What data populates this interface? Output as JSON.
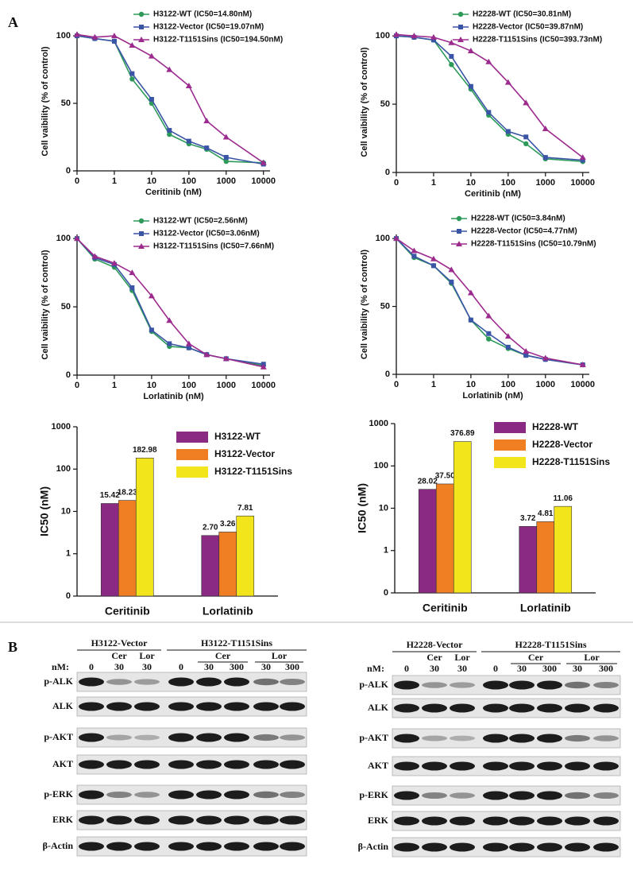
{
  "panel_labels": [
    "A",
    "B"
  ],
  "chart_data": [
    {
      "type": "line",
      "xlabel": "Ceritinib (nM)",
      "ylabel": "Cell vaibility (% of control)",
      "xlog": true,
      "x": [
        0,
        0.3,
        1,
        3,
        10,
        30,
        100,
        300,
        1000,
        10000
      ],
      "xlim": [
        0,
        15000
      ],
      "xticks": [
        0,
        1,
        10,
        100,
        1000,
        10000
      ],
      "ylim": [
        0,
        103
      ],
      "yticks": [
        0,
        50,
        100
      ],
      "series": [
        {
          "name": "H3122-WT (IC50=14.80nM)",
          "color": "#2e9a5a",
          "marker": "circle",
          "values": [
            100,
            98,
            96,
            68,
            50,
            27,
            20,
            16,
            7,
            6
          ]
        },
        {
          "name": "H3122-Vector (IC50=19.07nM)",
          "color": "#3b55a6",
          "marker": "square",
          "values": [
            100,
            98,
            96,
            72,
            53,
            30,
            22,
            17,
            10,
            5
          ]
        },
        {
          "name": "H3122-T1151Sins (IC50=194.50nM)",
          "color": "#9c2b8e",
          "marker": "triangle",
          "values": [
            101,
            99,
            100,
            93,
            85,
            75,
            63,
            37,
            25,
            6
          ]
        }
      ]
    },
    {
      "type": "line",
      "xlabel": "Ceritinib (nM)",
      "ylabel": "Cell vaibility (% of control)",
      "xlog": true,
      "x": [
        0,
        0.3,
        1,
        3,
        10,
        30,
        100,
        300,
        1000,
        10000
      ],
      "xlim": [
        0,
        15000
      ],
      "xticks": [
        0,
        1,
        10,
        100,
        1000,
        10000
      ],
      "ylim": [
        0,
        103
      ],
      "yticks": [
        0,
        50,
        100
      ],
      "series": [
        {
          "name": "H2228-WT (IC50=30.81nM)",
          "color": "#2e9a5a",
          "marker": "circle",
          "values": [
            100,
            99,
            97,
            79,
            61,
            42,
            28,
            21,
            10,
            8
          ]
        },
        {
          "name": "H2228-Vector (IC50=39.87nM)",
          "color": "#3b55a6",
          "marker": "square",
          "values": [
            100,
            99,
            97,
            85,
            63,
            44,
            30,
            26,
            11,
            9
          ]
        },
        {
          "name": "H2228-T1151Sins (IC50=393.73nM)",
          "color": "#9c2b8e",
          "marker": "triangle",
          "values": [
            101,
            100,
            99,
            95,
            89,
            81,
            66,
            51,
            32,
            11
          ]
        }
      ]
    },
    {
      "type": "line",
      "xlabel": "Lorlatinib (nM)",
      "ylabel": "Cell vaibility (% of control)",
      "xlog": true,
      "x": [
        0,
        0.3,
        1,
        3,
        10,
        30,
        100,
        300,
        1000,
        10000
      ],
      "xlim": [
        0,
        15000
      ],
      "xticks": [
        0,
        1,
        10,
        100,
        1000,
        10000
      ],
      "ylim": [
        0,
        103
      ],
      "yticks": [
        0,
        50,
        100
      ],
      "series": [
        {
          "name": "H3122-WT (IC50=2.56nM)",
          "color": "#2e9a5a",
          "marker": "circle",
          "values": [
            100,
            85,
            79,
            62,
            32,
            21,
            20,
            15,
            12,
            7
          ]
        },
        {
          "name": "H3122-Vector (IC50=3.06nM)",
          "color": "#3b55a6",
          "marker": "square",
          "values": [
            100,
            86,
            81,
            64,
            33,
            23,
            20,
            15,
            12,
            8
          ]
        },
        {
          "name": "H3122-T1151Sins (IC50=7.66nM)",
          "color": "#9c2b8e",
          "marker": "triangle",
          "values": [
            100,
            87,
            82,
            75,
            58,
            40,
            23,
            15,
            12,
            6
          ]
        }
      ]
    },
    {
      "type": "line",
      "xlabel": "Lorlatinib (nM)",
      "ylabel": "Cell vaibility (% of control)",
      "xlog": true,
      "x": [
        0,
        0.3,
        1,
        3,
        10,
        30,
        100,
        300,
        1000,
        10000
      ],
      "xlim": [
        0,
        15000
      ],
      "xticks": [
        0,
        1,
        10,
        100,
        1000,
        10000
      ],
      "ylim": [
        0,
        103
      ],
      "yticks": [
        0,
        50,
        100
      ],
      "series": [
        {
          "name": "H2228-WT (IC50=3.84nM)",
          "color": "#2e9a5a",
          "marker": "circle",
          "values": [
            100,
            86,
            80,
            67,
            40,
            26,
            19,
            14,
            11,
            7
          ]
        },
        {
          "name": "H2228-Vector (IC50=4.77nM)",
          "color": "#3b55a6",
          "marker": "square",
          "values": [
            100,
            87,
            80,
            68,
            40,
            30,
            20,
            14,
            11,
            7
          ]
        },
        {
          "name": "H2228-T1151Sins (IC50=10.79nM)",
          "color": "#9c2b8e",
          "marker": "triangle",
          "values": [
            100,
            91,
            85,
            77,
            60,
            43,
            28,
            17,
            12,
            7
          ]
        }
      ]
    },
    {
      "type": "bar",
      "ylabel": "IC50 (nM)",
      "ylog": true,
      "categories": [
        "Ceritinib",
        "Lorlatinib"
      ],
      "ylim": [
        0,
        1000
      ],
      "yticks": [
        0,
        1,
        10,
        100,
        1000
      ],
      "series": [
        {
          "name": "H3122-WT",
          "color": "#8b2a82",
          "values": [
            15.42,
            2.7
          ],
          "value_labels": [
            "15.42",
            "2.70"
          ]
        },
        {
          "name": "H3122-Vector",
          "color": "#f07e22",
          "values": [
            18.23,
            3.26
          ],
          "value_labels": [
            "18.23",
            "3.26"
          ]
        },
        {
          "name": "H3122-T1151Sins",
          "color": "#f2e51b",
          "values": [
            182.98,
            7.81
          ],
          "value_labels": [
            "182.98",
            "7.81"
          ]
        }
      ]
    },
    {
      "type": "bar",
      "ylabel": "IC50 (nM)",
      "ylog": true,
      "categories": [
        "Ceritinib",
        "Lorlatinib"
      ],
      "ylim": [
        0,
        1000
      ],
      "yticks": [
        0,
        1,
        10,
        100,
        1000
      ],
      "series": [
        {
          "name": "H2228-WT",
          "color": "#8b2a82",
          "values": [
            28.02,
            3.72
          ],
          "value_labels": [
            "28.02",
            "3.72"
          ]
        },
        {
          "name": "H2228-Vector",
          "color": "#f07e22",
          "values": [
            37.5,
            4.81
          ],
          "value_labels": [
            "37.50",
            "4.81"
          ]
        },
        {
          "name": "H2228-T1151Sins",
          "color": "#f2e51b",
          "values": [
            376.89,
            11.06
          ],
          "value_labels": [
            "376.89",
            "11.06"
          ]
        }
      ]
    }
  ],
  "blots": [
    {
      "groups": [
        "H3122-Vector",
        "H3122-T1151Sins"
      ],
      "drugs": [
        "Cer",
        "Lor",
        "Cer",
        "Lor"
      ],
      "dose_label": "nM:",
      "doses": [
        "0",
        "30",
        "30",
        "0",
        "30",
        "300",
        "30",
        "300"
      ],
      "rows": [
        "p-ALK",
        "ALK",
        "p-AKT",
        "AKT",
        "p-ERK",
        "ERK",
        "β-Actin"
      ]
    },
    {
      "groups": [
        "H2228-Vector",
        "H2228-T1151Sins"
      ],
      "drugs": [
        "Cer",
        "Lor",
        "Cer",
        "Lor"
      ],
      "dose_label": "nM:",
      "doses": [
        "0",
        "30",
        "30",
        "0",
        "30",
        "300",
        "30",
        "300"
      ],
      "rows": [
        "p-ALK",
        "ALK",
        "p-AKT",
        "AKT",
        "p-ERK",
        "ERK",
        "β-Actin"
      ]
    }
  ]
}
